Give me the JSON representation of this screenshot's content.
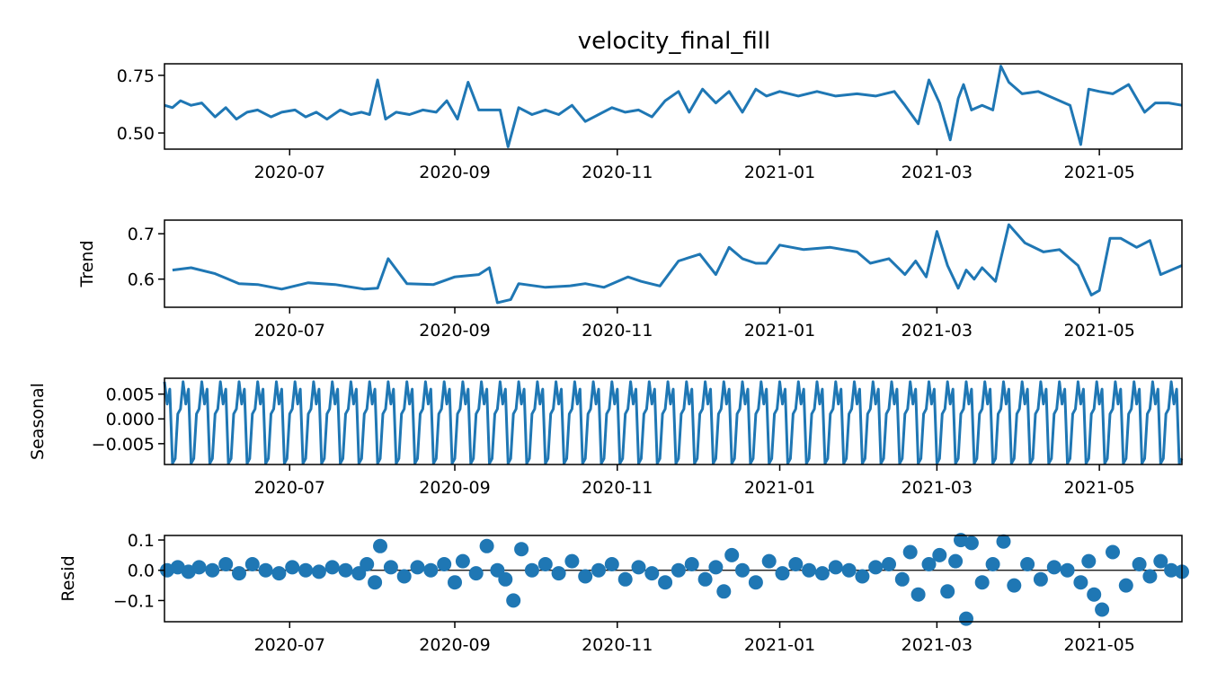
{
  "title": "velocity_final_fill",
  "colors": {
    "line": "#1f77b4",
    "axis": "#000000",
    "background": "#ffffff"
  },
  "chart_data": [
    {
      "type": "line",
      "ylabel": "",
      "xlim": [
        "2020-05-15",
        "2021-06-01"
      ],
      "ylim": [
        0.43,
        0.8
      ],
      "xticks": [
        "2020-07",
        "2020-09",
        "2020-11",
        "2021-01",
        "2021-03",
        "2021-05"
      ],
      "yticks": [
        {
          "value": 0.5,
          "label": "0.50"
        },
        {
          "value": 0.75,
          "label": "0.75"
        }
      ],
      "series": [
        {
          "x": [
            "2020-05-15",
            "2020-05-18",
            "2020-05-21",
            "2020-05-25",
            "2020-05-29",
            "2020-06-03",
            "2020-06-07",
            "2020-06-11",
            "2020-06-15",
            "2020-06-19",
            "2020-06-24",
            "2020-06-28",
            "2020-07-03",
            "2020-07-07",
            "2020-07-11",
            "2020-07-15",
            "2020-07-20",
            "2020-07-24",
            "2020-07-28",
            "2020-07-31",
            "2020-08-03",
            "2020-08-06",
            "2020-08-10",
            "2020-08-15",
            "2020-08-20",
            "2020-08-25",
            "2020-08-29",
            "2020-09-02",
            "2020-09-06",
            "2020-09-10",
            "2020-09-14",
            "2020-09-18",
            "2020-09-21",
            "2020-09-25",
            "2020-09-30",
            "2020-10-05",
            "2020-10-10",
            "2020-10-15",
            "2020-10-20",
            "2020-10-25",
            "2020-10-30",
            "2020-11-04",
            "2020-11-09",
            "2020-11-14",
            "2020-11-19",
            "2020-11-24",
            "2020-11-28",
            "2020-12-03",
            "2020-12-08",
            "2020-12-13",
            "2020-12-18",
            "2020-12-23",
            "2020-12-27",
            "2021-01-01",
            "2021-01-08",
            "2021-01-15",
            "2021-01-22",
            "2021-01-30",
            "2021-02-06",
            "2021-02-13",
            "2021-02-17",
            "2021-02-22",
            "2021-02-26",
            "2021-03-02",
            "2021-03-06",
            "2021-03-09",
            "2021-03-11",
            "2021-03-14",
            "2021-03-18",
            "2021-03-22",
            "2021-03-25",
            "2021-03-28",
            "2021-04-02",
            "2021-04-08",
            "2021-04-14",
            "2021-04-20",
            "2021-04-24",
            "2021-04-27",
            "2021-05-01",
            "2021-05-06",
            "2021-05-12",
            "2021-05-18",
            "2021-05-22",
            "2021-05-27",
            "2021-06-01"
          ],
          "y": [
            0.62,
            0.61,
            0.64,
            0.62,
            0.63,
            0.57,
            0.61,
            0.56,
            0.59,
            0.6,
            0.57,
            0.59,
            0.6,
            0.57,
            0.59,
            0.56,
            0.6,
            0.58,
            0.59,
            0.58,
            0.73,
            0.56,
            0.59,
            0.58,
            0.6,
            0.59,
            0.64,
            0.56,
            0.72,
            0.6,
            0.6,
            0.6,
            0.44,
            0.61,
            0.58,
            0.6,
            0.58,
            0.62,
            0.55,
            0.58,
            0.61,
            0.59,
            0.6,
            0.57,
            0.64,
            0.68,
            0.59,
            0.69,
            0.63,
            0.68,
            0.59,
            0.69,
            0.66,
            0.68,
            0.66,
            0.68,
            0.66,
            0.67,
            0.66,
            0.68,
            0.62,
            0.54,
            0.73,
            0.63,
            0.47,
            0.65,
            0.71,
            0.6,
            0.62,
            0.6,
            0.79,
            0.72,
            0.67,
            0.68,
            0.65,
            0.62,
            0.45,
            0.69,
            0.68,
            0.67,
            0.71,
            0.59,
            0.63,
            0.63,
            0.62
          ]
        }
      ]
    },
    {
      "type": "line",
      "ylabel": "Trend",
      "xlim": [
        "2020-05-15",
        "2021-06-01"
      ],
      "ylim": [
        0.538,
        0.73
      ],
      "xticks": [
        "2020-07",
        "2020-09",
        "2020-11",
        "2021-01",
        "2021-03",
        "2021-05"
      ],
      "yticks": [
        {
          "value": 0.6,
          "label": "0.6"
        },
        {
          "value": 0.7,
          "label": "0.7"
        }
      ],
      "series": [
        {
          "x": [
            "2020-05-18",
            "2020-05-25",
            "2020-06-03",
            "2020-06-12",
            "2020-06-19",
            "2020-06-28",
            "2020-07-08",
            "2020-07-18",
            "2020-07-29",
            "2020-08-03",
            "2020-08-07",
            "2020-08-14",
            "2020-08-24",
            "2020-09-01",
            "2020-09-10",
            "2020-09-14",
            "2020-09-17",
            "2020-09-22",
            "2020-09-25",
            "2020-10-05",
            "2020-10-14",
            "2020-10-20",
            "2020-10-27",
            "2020-11-05",
            "2020-11-10",
            "2020-11-17",
            "2020-11-24",
            "2020-12-02",
            "2020-12-08",
            "2020-12-13",
            "2020-12-18",
            "2020-12-23",
            "2020-12-27",
            "2021-01-01",
            "2021-01-10",
            "2021-01-20",
            "2021-01-30",
            "2021-02-04",
            "2021-02-11",
            "2021-02-17",
            "2021-02-21",
            "2021-02-25",
            "2021-03-01",
            "2021-03-05",
            "2021-03-09",
            "2021-03-12",
            "2021-03-15",
            "2021-03-18",
            "2021-03-23",
            "2021-03-28",
            "2021-04-03",
            "2021-04-10",
            "2021-04-16",
            "2021-04-23",
            "2021-04-28",
            "2021-05-01",
            "2021-05-05",
            "2021-05-09",
            "2021-05-15",
            "2021-05-20",
            "2021-05-24",
            "2021-06-01"
          ],
          "y": [
            0.62,
            0.625,
            0.612,
            0.59,
            0.588,
            0.578,
            0.592,
            0.588,
            0.578,
            0.58,
            0.645,
            0.59,
            0.588,
            0.605,
            0.61,
            0.625,
            0.548,
            0.555,
            0.59,
            0.582,
            0.585,
            0.59,
            0.582,
            0.605,
            0.595,
            0.585,
            0.64,
            0.655,
            0.61,
            0.67,
            0.645,
            0.635,
            0.635,
            0.675,
            0.665,
            0.67,
            0.66,
            0.635,
            0.645,
            0.61,
            0.64,
            0.605,
            0.705,
            0.63,
            0.58,
            0.62,
            0.6,
            0.625,
            0.595,
            0.72,
            0.68,
            0.66,
            0.665,
            0.63,
            0.565,
            0.575,
            0.69,
            0.69,
            0.67,
            0.685,
            0.61,
            0.63
          ]
        }
      ]
    },
    {
      "type": "line",
      "ylabel": "Seasonal",
      "xlim": [
        "2020-05-15",
        "2021-06-01"
      ],
      "ylim": [
        -0.0092,
        0.0082
      ],
      "xticks": [
        "2020-07",
        "2020-09",
        "2020-11",
        "2021-01",
        "2021-03",
        "2021-05"
      ],
      "yticks": [
        {
          "value": -0.005,
          "label": "−0.005"
        },
        {
          "value": 0.0,
          "label": "0.000"
        },
        {
          "value": 0.005,
          "label": "0.005"
        }
      ],
      "series": [
        {
          "start": "2020-05-15",
          "end": "2021-06-01",
          "period_days": 7,
          "pattern": [
            0.0075,
            0.003,
            0.006,
            -0.009,
            -0.008,
            0.001,
            0.002
          ]
        }
      ]
    },
    {
      "type": "scatter",
      "ylabel": "Resid",
      "xlim": [
        "2020-05-15",
        "2021-06-01"
      ],
      "ylim": [
        -0.17,
        0.115
      ],
      "xticks": [
        "2020-07",
        "2020-09",
        "2020-11",
        "2021-01",
        "2021-03",
        "2021-05"
      ],
      "yticks": [
        {
          "value": -0.1,
          "label": "−0.1"
        },
        {
          "value": 0.0,
          "label": "0.0"
        },
        {
          "value": 0.1,
          "label": "0.1"
        }
      ],
      "series": [
        {
          "x": [
            "2020-05-16",
            "2020-05-20",
            "2020-05-24",
            "2020-05-28",
            "2020-06-02",
            "2020-06-07",
            "2020-06-12",
            "2020-06-17",
            "2020-06-22",
            "2020-06-27",
            "2020-07-02",
            "2020-07-07",
            "2020-07-12",
            "2020-07-17",
            "2020-07-22",
            "2020-07-27",
            "2020-07-30",
            "2020-08-02",
            "2020-08-04",
            "2020-08-08",
            "2020-08-13",
            "2020-08-18",
            "2020-08-23",
            "2020-08-28",
            "2020-09-01",
            "2020-09-04",
            "2020-09-09",
            "2020-09-13",
            "2020-09-17",
            "2020-09-20",
            "2020-09-23",
            "2020-09-26",
            "2020-09-30",
            "2020-10-05",
            "2020-10-10",
            "2020-10-15",
            "2020-10-20",
            "2020-10-25",
            "2020-10-30",
            "2020-11-04",
            "2020-11-09",
            "2020-11-14",
            "2020-11-19",
            "2020-11-24",
            "2020-11-29",
            "2020-12-04",
            "2020-12-08",
            "2020-12-11",
            "2020-12-14",
            "2020-12-18",
            "2020-12-23",
            "2020-12-28",
            "2021-01-02",
            "2021-01-07",
            "2021-01-12",
            "2021-01-17",
            "2021-01-22",
            "2021-01-27",
            "2021-02-01",
            "2021-02-06",
            "2021-02-11",
            "2021-02-16",
            "2021-02-19",
            "2021-02-22",
            "2021-02-26",
            "2021-03-02",
            "2021-03-05",
            "2021-03-08",
            "2021-03-10",
            "2021-03-12",
            "2021-03-14",
            "2021-03-18",
            "2021-03-22",
            "2021-03-26",
            "2021-03-30",
            "2021-04-04",
            "2021-04-09",
            "2021-04-14",
            "2021-04-19",
            "2021-04-24",
            "2021-04-27",
            "2021-04-29",
            "2021-05-02",
            "2021-05-06",
            "2021-05-11",
            "2021-05-16",
            "2021-05-20",
            "2021-05-24",
            "2021-05-28",
            "2021-06-01"
          ],
          "y": [
            0.0,
            0.01,
            -0.005,
            0.01,
            0.0,
            0.02,
            -0.01,
            0.02,
            0.0,
            -0.01,
            0.01,
            0.0,
            -0.005,
            0.01,
            0.0,
            -0.01,
            0.02,
            -0.04,
            0.08,
            0.01,
            -0.02,
            0.01,
            0.0,
            0.02,
            -0.04,
            0.03,
            -0.01,
            0.08,
            0.0,
            -0.03,
            -0.1,
            0.07,
            0.0,
            0.02,
            -0.01,
            0.03,
            -0.02,
            0.0,
            0.02,
            -0.03,
            0.01,
            -0.01,
            -0.04,
            0.0,
            0.02,
            -0.03,
            0.01,
            -0.07,
            0.05,
            0.0,
            -0.04,
            0.03,
            -0.01,
            0.02,
            0.0,
            -0.01,
            0.01,
            0.0,
            -0.02,
            0.01,
            0.02,
            -0.03,
            0.06,
            -0.08,
            0.02,
            0.05,
            -0.07,
            0.03,
            0.1,
            -0.16,
            0.09,
            -0.04,
            0.02,
            0.095,
            -0.05,
            0.02,
            -0.03,
            0.01,
            0.0,
            -0.04,
            0.03,
            -0.08,
            -0.13,
            0.06,
            -0.05,
            0.02,
            -0.02,
            0.03,
            0.0,
            -0.005
          ]
        }
      ]
    }
  ]
}
